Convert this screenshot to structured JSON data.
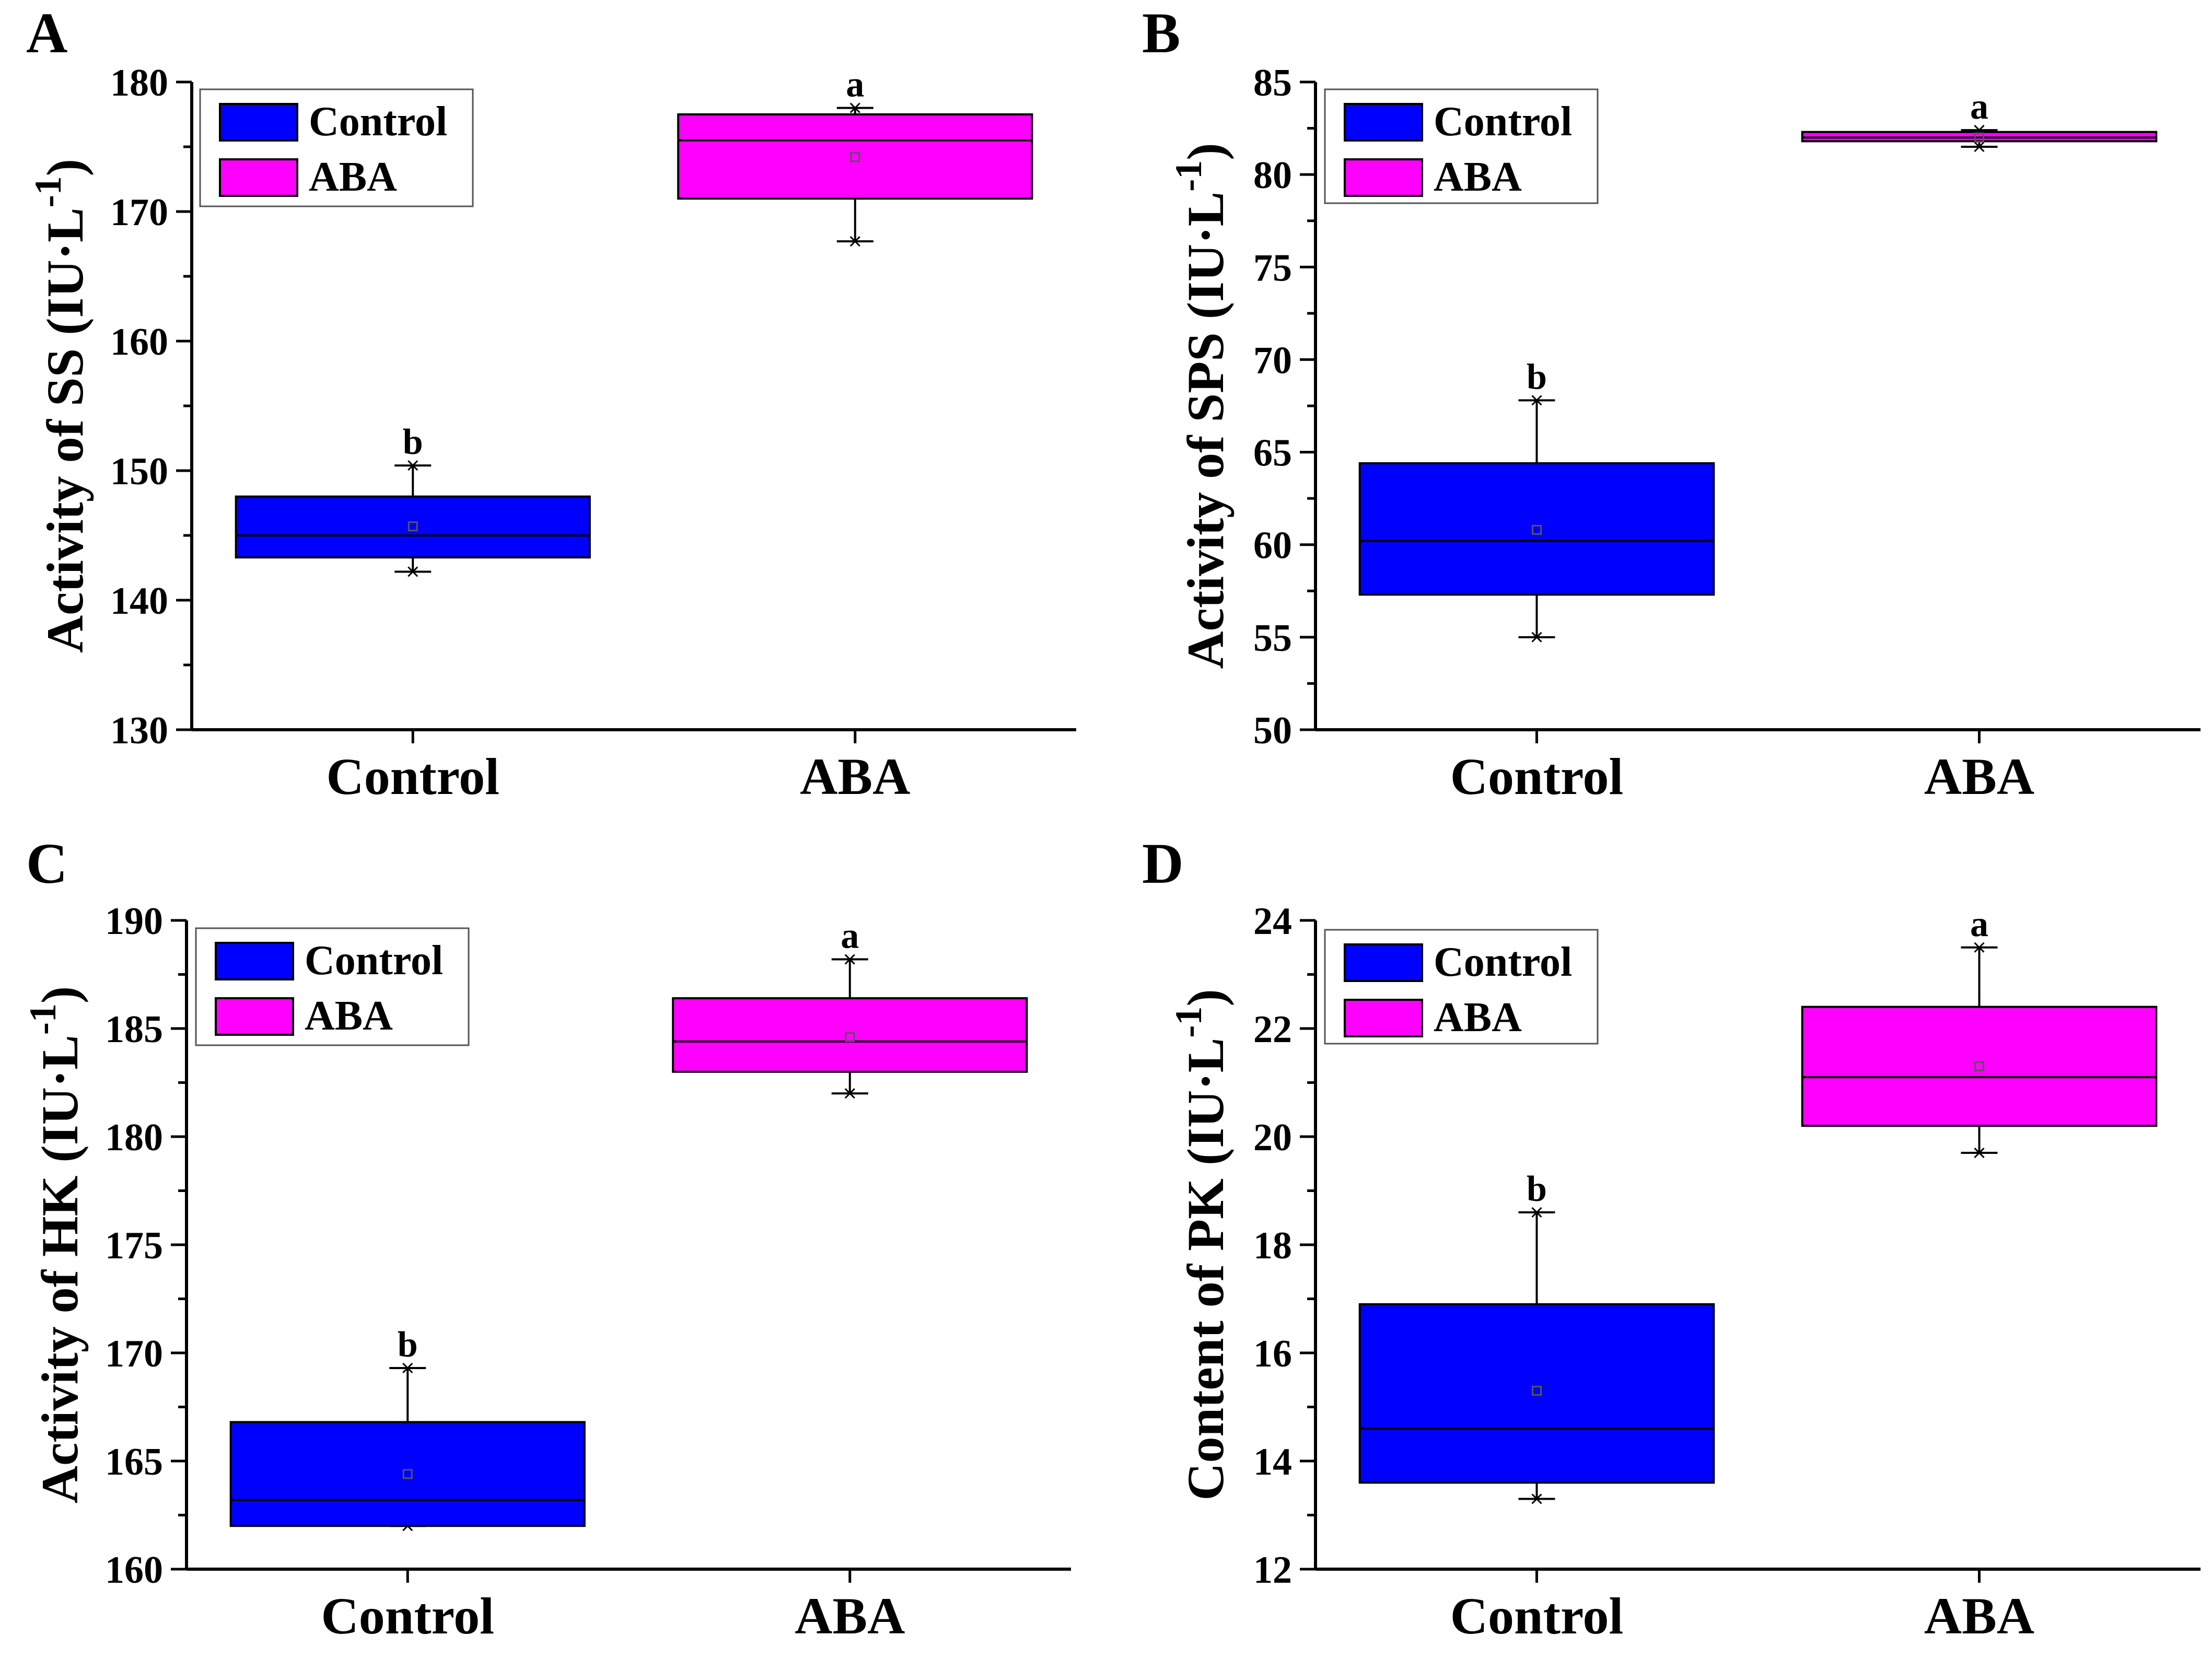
{
  "chart_data": [
    {
      "panel_label": "A",
      "type": "box",
      "ylabel": "Activity of SS",
      "ylabel_unit_prefix": "(IU·L",
      "ylabel_unit_exp": "-1",
      "ylabel_unit_suffix": ")",
      "ylim": [
        130,
        180
      ],
      "yticks": [
        130,
        140,
        150,
        160,
        170,
        180
      ],
      "minor_step": 5,
      "categories": [
        "Control",
        "ABA"
      ],
      "legend": [
        {
          "name": "Control",
          "color": "#0000FF"
        },
        {
          "name": "ABA",
          "color": "#FF00FF"
        }
      ],
      "boxes": [
        {
          "name": "Control",
          "color": "#0000FF",
          "min": 142.2,
          "q1": 143.3,
          "median": 145.0,
          "q3": 148.0,
          "max": 150.4,
          "mean": 145.7,
          "sig": "b"
        },
        {
          "name": "ABA",
          "color": "#FF00FF",
          "min": 167.7,
          "q1": 171.0,
          "median": 175.5,
          "q3": 177.5,
          "max": 178.0,
          "mean": 174.2,
          "sig": "a"
        }
      ]
    },
    {
      "panel_label": "B",
      "type": "box",
      "ylabel": "Activity of SPS",
      "ylabel_unit_prefix": "(IU·L",
      "ylabel_unit_exp": "-1",
      "ylabel_unit_suffix": ")",
      "ylim": [
        50,
        85
      ],
      "yticks": [
        50,
        55,
        60,
        65,
        70,
        75,
        80,
        85
      ],
      "minor_step": 2.5,
      "categories": [
        "Control",
        "ABA"
      ],
      "legend": [
        {
          "name": "Control",
          "color": "#0000FF"
        },
        {
          "name": "ABA",
          "color": "#FF00FF"
        }
      ],
      "boxes": [
        {
          "name": "Control",
          "color": "#0000FF",
          "min": 55.0,
          "q1": 57.3,
          "median": 60.2,
          "q3": 64.4,
          "max": 67.8,
          "mean": 60.8,
          "sig": "b"
        },
        {
          "name": "ABA",
          "color": "#FF00FF",
          "min": 81.5,
          "q1": 81.8,
          "median": 82.0,
          "q3": 82.3,
          "max": 82.4,
          "mean": 82.0,
          "sig": "a"
        }
      ]
    },
    {
      "panel_label": "C",
      "type": "box",
      "ylabel": "Activity of HK",
      "ylabel_unit_prefix": "(IU·L",
      "ylabel_unit_exp": "-1",
      "ylabel_unit_suffix": ")",
      "ylim": [
        160,
        190
      ],
      "yticks": [
        160,
        165,
        170,
        175,
        180,
        185,
        190
      ],
      "minor_step": 2.5,
      "categories": [
        "Control",
        "ABA"
      ],
      "legend": [
        {
          "name": "Control",
          "color": "#0000FF"
        },
        {
          "name": "ABA",
          "color": "#FF00FF"
        }
      ],
      "boxes": [
        {
          "name": "Control",
          "color": "#0000FF",
          "min": 162.0,
          "q1": 162.0,
          "median": 163.2,
          "q3": 166.8,
          "max": 169.3,
          "mean": 164.4,
          "sig": "b"
        },
        {
          "name": "ABA",
          "color": "#FF00FF",
          "min": 182.0,
          "q1": 183.0,
          "median": 184.4,
          "q3": 186.4,
          "max": 188.2,
          "mean": 184.6,
          "sig": "a"
        }
      ]
    },
    {
      "panel_label": "D",
      "type": "box",
      "ylabel": "Content of PK",
      "ylabel_unit_prefix": "(IU·L",
      "ylabel_unit_exp": "-1",
      "ylabel_unit_suffix": ")",
      "ylim": [
        12,
        24
      ],
      "yticks": [
        12,
        14,
        16,
        18,
        20,
        22,
        24
      ],
      "minor_step": 1,
      "categories": [
        "Control",
        "ABA"
      ],
      "legend": [
        {
          "name": "Control",
          "color": "#0000FF"
        },
        {
          "name": "ABA",
          "color": "#FF00FF"
        }
      ],
      "boxes": [
        {
          "name": "Control",
          "color": "#0000FF",
          "min": 13.3,
          "q1": 13.6,
          "median": 14.6,
          "q3": 16.9,
          "max": 18.6,
          "mean": 15.3,
          "sig": "b"
        },
        {
          "name": "ABA",
          "color": "#FF00FF",
          "min": 19.7,
          "q1": 20.2,
          "median": 21.1,
          "q3": 22.4,
          "max": 23.5,
          "mean": 21.3,
          "sig": "a"
        }
      ]
    }
  ]
}
